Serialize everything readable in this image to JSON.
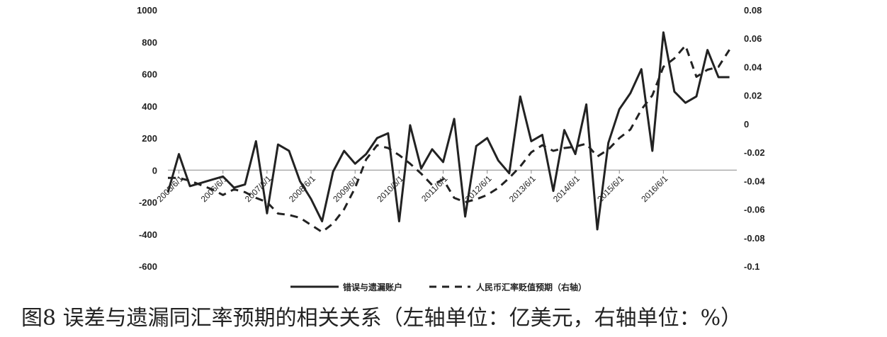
{
  "caption": "图8 误差与遗漏同汇率预期的相关关系（左轴单位：亿美元，右轴单位：%）",
  "chart_data": {
    "type": "line",
    "x_labels": [
      "2005/6/1",
      "2006/6/1",
      "2007/6/1",
      "2008/6/1",
      "2009/6/1",
      "2010/6/1",
      "2011/6/1",
      "2012/6/1",
      "2013/6/1",
      "2014/6/1",
      "2015/6/1",
      "2016/6/1"
    ],
    "y_left": {
      "ticks": [
        "1000",
        "800",
        "600",
        "400",
        "200",
        "0",
        "-200",
        "-400",
        "-600"
      ],
      "min": -600,
      "max": 1000
    },
    "y_right": {
      "ticks": [
        "0.08",
        "0.06",
        "0.04",
        "0.02",
        "0",
        "-0.02",
        "-0.04",
        "-0.06",
        "-0.08",
        "-0.1"
      ],
      "min": -0.1,
      "max": 0.08
    },
    "series": [
      {
        "name": "错误与遗漏账户",
        "axis": "left",
        "style": "solid",
        "color": "#222222",
        "values": [
          -140,
          100,
          -100,
          -80,
          -60,
          -40,
          -110,
          -90,
          180,
          -270,
          160,
          120,
          -70,
          -180,
          -320,
          -10,
          120,
          40,
          100,
          200,
          230,
          -320,
          280,
          10,
          130,
          50,
          320,
          -290,
          150,
          200,
          60,
          -20,
          460,
          180,
          220,
          -130,
          250,
          100,
          410,
          -370,
          170,
          380,
          480,
          630,
          120,
          860,
          490,
          420,
          460,
          750,
          580,
          580
        ],
        "start_month": "2005/3",
        "step_months": 3
      },
      {
        "name": "人民币汇率贬值预期（右轴）",
        "axis": "right",
        "style": "dashed",
        "color": "#222222",
        "values": [
          -0.038,
          -0.038,
          -0.04,
          -0.043,
          -0.046,
          -0.05,
          -0.046,
          -0.048,
          -0.052,
          -0.055,
          -0.063,
          -0.064,
          -0.066,
          -0.071,
          -0.076,
          -0.07,
          -0.06,
          -0.045,
          -0.025,
          -0.015,
          -0.017,
          -0.022,
          -0.028,
          -0.035,
          -0.043,
          -0.039,
          -0.052,
          -0.055,
          -0.053,
          -0.05,
          -0.045,
          -0.038,
          -0.03,
          -0.02,
          -0.015,
          -0.019,
          -0.017,
          -0.016,
          -0.014,
          -0.023,
          -0.018,
          -0.01,
          -0.004,
          0.01,
          0.02,
          0.04,
          0.046,
          0.055,
          0.033,
          0.038,
          0.04,
          0.052
        ],
        "start_month": "2005/3",
        "step_months": 3
      }
    ],
    "legend_position": "bottom"
  }
}
